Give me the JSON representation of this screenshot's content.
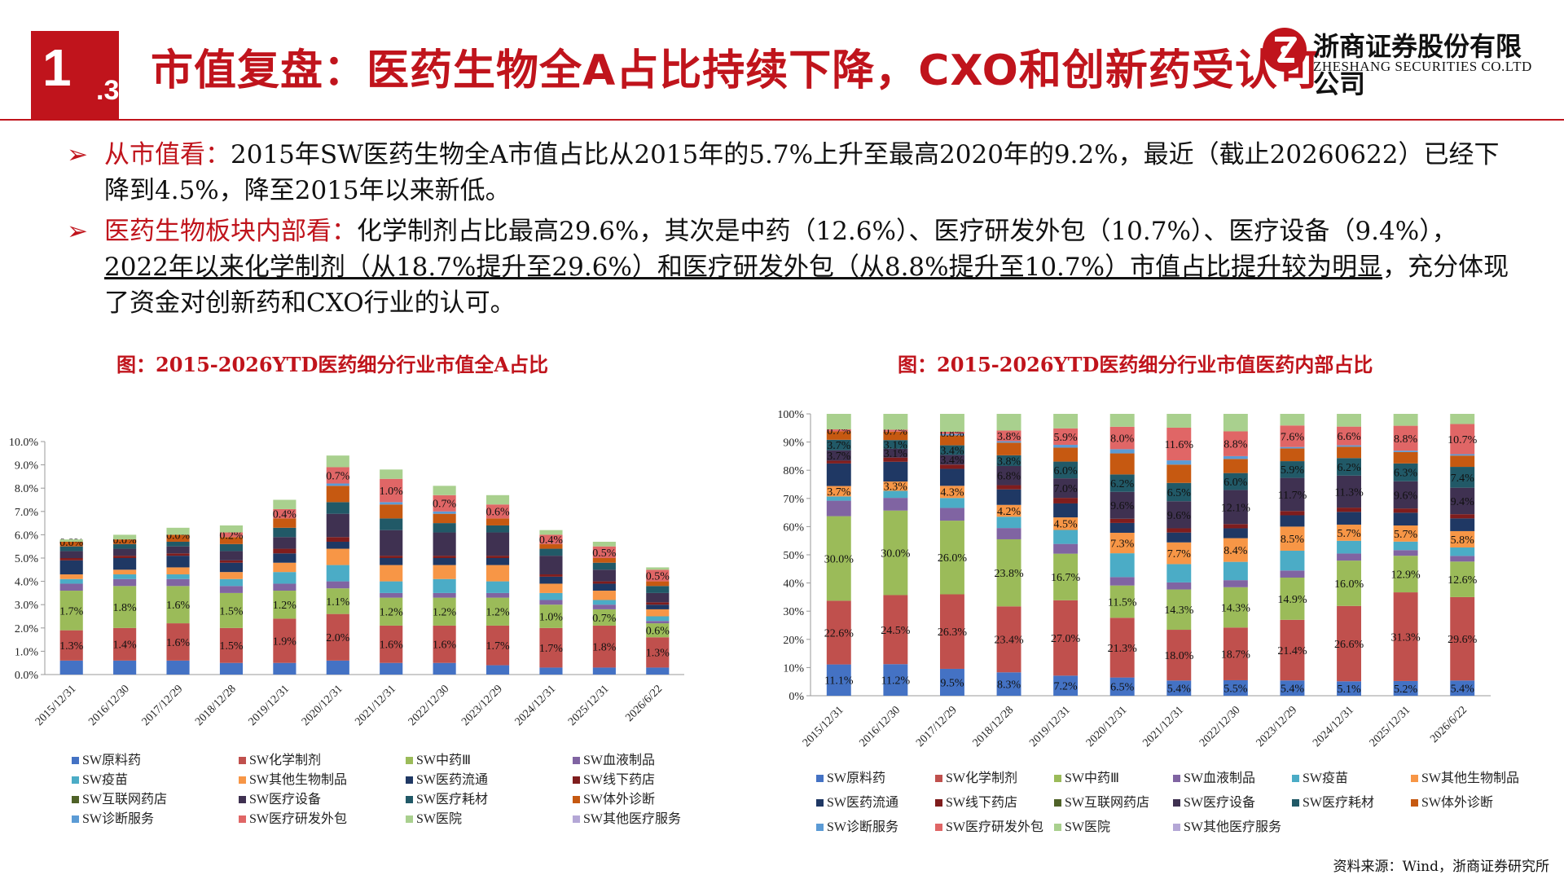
{
  "header": {
    "badge_number": "1",
    "badge_sub": ".3",
    "title": "市值复盘：医药生物全A占比持续下降，CXO和创新药受认可",
    "logo_cn": "浙商证券股份有限公司",
    "logo_en": "ZHESHANG SECURITIES CO.LTD"
  },
  "bullets": [
    {
      "lead": "从市值看：",
      "text": "2015年SW医药生物全A市值占比从2015年的5.7%上升至最高2020年的9.2%，最近（截止20260622）已经下降到4.5%，降至2015年以来新低。"
    },
    {
      "lead": "医药生物板块内部看：",
      "text_before": "化学制剂占比最高29.6%，其次是中药（12.6%）、医疗研发外包（10.7%）、医疗设备（9.4%），",
      "text_underlined": "2022年以来化学制剂（从18.7%提升至29.6%）和医疗研发外包（从8.8%提升至10.7%）市值占比提升较为明显",
      "text_after": "，充分体现了资金对创新药和CXO行业的认可。"
    }
  ],
  "source": "资料来源：Wind，浙商证券研究所",
  "chart_data": [
    {
      "type": "bar",
      "stacked": true,
      "title": "图：2015-2026YTD医药细分行业市值全A占比",
      "categories": [
        "2015/12/31",
        "2016/12/30",
        "2017/12/29",
        "2018/12/28",
        "2019/12/31",
        "2020/12/31",
        "2021/12/31",
        "2022/12/30",
        "2023/12/29",
        "2024/12/31",
        "2025/12/31",
        "2026/6/22"
      ],
      "ylim": [
        0,
        10
      ],
      "ytick_labels": [
        "0.0%",
        "1.0%",
        "2.0%",
        "3.0%",
        "4.0%",
        "5.0%",
        "6.0%",
        "7.0%",
        "8.0%",
        "9.0%",
        "10.0%"
      ],
      "grid": false,
      "legend_position": "bottom",
      "series": [
        {
          "name": "SW原料药",
          "color": "#4472c4",
          "values": [
            0.6,
            0.6,
            0.6,
            0.5,
            0.5,
            0.6,
            0.5,
            0.5,
            0.4,
            0.3,
            0.3,
            0.3
          ]
        },
        {
          "name": "SW化学制剂",
          "color": "#c0504d",
          "values": [
            1.3,
            1.4,
            1.6,
            1.5,
            1.9,
            2.0,
            1.6,
            1.6,
            1.7,
            1.7,
            1.8,
            1.3
          ]
        },
        {
          "name": "SW中药Ⅲ",
          "color": "#9bbb59",
          "values": [
            1.7,
            1.8,
            1.6,
            1.5,
            1.2,
            1.1,
            1.2,
            1.2,
            1.2,
            1.0,
            0.7,
            0.6
          ]
        },
        {
          "name": "SW血液制品",
          "color": "#8064a2",
          "values": [
            0.3,
            0.3,
            0.3,
            0.3,
            0.3,
            0.3,
            0.2,
            0.2,
            0.2,
            0.2,
            0.2,
            0.1
          ]
        },
        {
          "name": "SW疫苗",
          "color": "#4bacc6",
          "values": [
            0.2,
            0.2,
            0.2,
            0.3,
            0.5,
            0.7,
            0.5,
            0.6,
            0.5,
            0.3,
            0.2,
            0.2
          ]
        },
        {
          "name": "SW其他生物制品",
          "color": "#f79646",
          "values": [
            0.2,
            0.2,
            0.3,
            0.3,
            0.4,
            0.7,
            0.7,
            0.6,
            0.7,
            0.4,
            0.4,
            0.3
          ]
        },
        {
          "name": "SW医药流通",
          "color": "#1f3864",
          "values": [
            0.6,
            0.5,
            0.5,
            0.4,
            0.4,
            0.3,
            0.3,
            0.3,
            0.3,
            0.3,
            0.3,
            0.2
          ]
        },
        {
          "name": "SW线下药店",
          "color": "#7f1d1d",
          "values": [
            0.1,
            0.1,
            0.1,
            0.1,
            0.2,
            0.2,
            0.1,
            0.1,
            0.1,
            0.1,
            0.1,
            0.1
          ]
        },
        {
          "name": "SW互联网药店",
          "color": "#4f6228",
          "values": [
            0.0,
            0.0,
            0.0,
            0.0,
            0.0,
            0.0,
            0.0,
            0.0,
            0.0,
            0.0,
            0.0,
            0.0
          ]
        },
        {
          "name": "SW医疗设备",
          "color": "#3f3151",
          "values": [
            0.3,
            0.3,
            0.3,
            0.4,
            0.5,
            1.0,
            1.1,
            1.0,
            1.0,
            0.8,
            0.5,
            0.4
          ]
        },
        {
          "name": "SW医疗耗材",
          "color": "#215967",
          "values": [
            0.2,
            0.2,
            0.2,
            0.3,
            0.4,
            0.5,
            0.5,
            0.4,
            0.3,
            0.3,
            0.3,
            0.3
          ]
        },
        {
          "name": "SW体外诊断",
          "color": "#c65911",
          "values": [
            0.2,
            0.2,
            0.3,
            0.3,
            0.4,
            0.7,
            0.6,
            0.4,
            0.3,
            0.2,
            0.2,
            0.2
          ]
        },
        {
          "name": "SW诊断服务",
          "color": "#5b9bd5",
          "values": [
            0.0,
            0.0,
            0.0,
            0.0,
            0.0,
            0.1,
            0.1,
            0.1,
            0.0,
            0.0,
            0.0,
            0.0
          ]
        },
        {
          "name": "SW医疗研发外包",
          "color": "#e06666",
          "values": [
            0.0,
            0.0,
            0.0,
            0.2,
            0.4,
            0.7,
            1.0,
            0.7,
            0.6,
            0.4,
            0.5,
            0.5
          ]
        },
        {
          "name": "SW医院",
          "color": "#a9d08e",
          "values": [
            0.1,
            0.2,
            0.3,
            0.3,
            0.4,
            0.5,
            0.4,
            0.4,
            0.4,
            0.2,
            0.2,
            0.1
          ]
        },
        {
          "name": "SW其他医疗服务",
          "color": "#b4a7d6",
          "values": [
            0.0,
            0.0,
            0.0,
            0.0,
            0.0,
            0.0,
            0.0,
            0.0,
            0.0,
            0.0,
            0.0,
            0.0
          ]
        }
      ],
      "data_labels": [
        {
          "series": "SW化学制剂",
          "labels": [
            "1.3%",
            "1.4%",
            "1.6%",
            "1.5%",
            "1.9%",
            "2.0%",
            "1.6%",
            "1.6%",
            "1.7%",
            "1.7%",
            "1.8%",
            "1.3%"
          ]
        },
        {
          "series": "SW中药Ⅲ",
          "labels": [
            "1.7%",
            "1.8%",
            "1.6%",
            "1.5%",
            "1.2%",
            "1.1%",
            "1.2%",
            "1.2%",
            "1.2%",
            "1.0%",
            "0.7%",
            "0.6%"
          ]
        },
        {
          "series": "SW医疗研发外包",
          "labels": [
            "0.0%",
            "0.0%",
            "0.0%",
            "0.2%",
            "0.4%",
            "0.7%",
            "1.0%",
            "0.7%",
            "0.6%",
            "0.4%",
            "0.5%",
            "0.5%"
          ]
        }
      ]
    },
    {
      "type": "bar",
      "stacked": true,
      "percent": true,
      "title": "图：2015-2026YTD医药细分行业市值医药内部占比",
      "categories": [
        "2015/12/31",
        "2016/12/30",
        "2017/12/29",
        "2018/12/28",
        "2019/12/31",
        "2020/12/31",
        "2021/12/31",
        "2022/12/30",
        "2023/12/29",
        "2024/12/31",
        "2025/12/31",
        "2026/6/22"
      ],
      "ylim": [
        0,
        100
      ],
      "ytick_labels": [
        "0%",
        "10%",
        "20%",
        "30%",
        "40%",
        "50%",
        "60%",
        "70%",
        "80%",
        "90%",
        "100%"
      ],
      "grid": false,
      "legend_position": "bottom",
      "series": [
        {
          "name": "SW原料药",
          "color": "#4472c4",
          "values": [
            11.1,
            11.2,
            9.5,
            8.3,
            7.2,
            6.5,
            5.4,
            5.5,
            5.4,
            5.1,
            5.2,
            5.4
          ]
        },
        {
          "name": "SW化学制剂",
          "color": "#c0504d",
          "values": [
            22.6,
            24.5,
            26.3,
            23.4,
            27.0,
            21.3,
            18.0,
            18.7,
            21.4,
            26.6,
            31.3,
            29.6
          ]
        },
        {
          "name": "SW中药Ⅲ",
          "color": "#9bbb59",
          "values": [
            30.0,
            30.0,
            26.0,
            23.8,
            16.7,
            11.5,
            14.3,
            14.3,
            14.9,
            16.0,
            12.9,
            12.6
          ]
        },
        {
          "name": "SW血液制品",
          "color": "#8064a2",
          "values": [
            5.5,
            4.5,
            4.5,
            4.0,
            3.5,
            3.0,
            2.5,
            2.5,
            2.5,
            2.5,
            2.0,
            2.0
          ]
        },
        {
          "name": "SW疫苗",
          "color": "#4bacc6",
          "values": [
            1.5,
            2.5,
            3.5,
            4.0,
            5.0,
            8.5,
            6.5,
            6.5,
            7.0,
            4.5,
            3.0,
            3.0
          ]
        },
        {
          "name": "SW其他生物制品",
          "color": "#f79646",
          "values": [
            3.7,
            3.3,
            4.3,
            4.2,
            4.5,
            7.3,
            7.7,
            8.4,
            8.5,
            5.7,
            5.7,
            5.8
          ]
        },
        {
          "name": "SW医药流通",
          "color": "#1f3864",
          "values": [
            8.0,
            7.0,
            6.0,
            5.5,
            5.0,
            3.5,
            3.5,
            3.5,
            4.0,
            4.5,
            4.5,
            4.5
          ]
        },
        {
          "name": "SW线下药店",
          "color": "#7f1d1d",
          "values": [
            1.0,
            1.5,
            1.5,
            1.5,
            2.0,
            1.5,
            1.5,
            1.5,
            1.5,
            1.5,
            1.5,
            1.5
          ]
        },
        {
          "name": "SW互联网药店",
          "color": "#4f6228",
          "values": [
            0.0,
            0.0,
            0.0,
            0.0,
            0.0,
            0.0,
            0.0,
            0.0,
            0.0,
            0.0,
            0.0,
            0.0
          ]
        },
        {
          "name": "SW医疗设备",
          "color": "#3f3151",
          "values": [
            3.7,
            3.1,
            3.4,
            6.8,
            7.0,
            9.6,
            9.6,
            12.1,
            11.7,
            11.3,
            9.6,
            9.4
          ]
        },
        {
          "name": "SW医疗耗材",
          "color": "#215967",
          "values": [
            3.7,
            3.1,
            3.4,
            3.8,
            6.0,
            6.2,
            6.5,
            6.0,
            5.9,
            6.2,
            6.3,
            7.4
          ]
        },
        {
          "name": "SW体外诊断",
          "color": "#c65911",
          "values": [
            3.0,
            3.0,
            3.5,
            4.5,
            5.0,
            7.5,
            6.5,
            5.0,
            4.5,
            4.0,
            4.0,
            4.0
          ]
        },
        {
          "name": "SW诊断服务",
          "color": "#5b9bd5",
          "values": [
            0.0,
            0.0,
            0.5,
            0.5,
            1.0,
            1.5,
            1.5,
            1.0,
            0.5,
            0.5,
            0.5,
            0.5
          ]
        },
        {
          "name": "SW医疗研发外包",
          "color": "#e06666",
          "values": [
            0.7,
            0.7,
            0.8,
            3.8,
            5.9,
            8.0,
            11.6,
            8.8,
            7.6,
            6.6,
            8.8,
            10.7
          ]
        },
        {
          "name": "SW医院",
          "color": "#a9d08e",
          "values": [
            5.5,
            5.6,
            6.3,
            5.9,
            5.2,
            4.6,
            4.9,
            6.2,
            4.1,
            4.5,
            4.2,
            3.6
          ]
        },
        {
          "name": "SW其他医疗服务",
          "color": "#b4a7d6",
          "values": [
            0.0,
            0.0,
            0.0,
            0.0,
            0.0,
            0.0,
            0.0,
            0.0,
            0.0,
            0.0,
            0.0,
            0.0
          ]
        }
      ],
      "data_labels": [
        {
          "series": "SW原料药",
          "labels": [
            "11.1%",
            "11.2%",
            "9.5%",
            "8.3%",
            "7.2%",
            "6.5%",
            "5.4%",
            "5.5%",
            "5.4%",
            "5.1%",
            "5.2%",
            "5.4%"
          ]
        },
        {
          "series": "SW化学制剂",
          "labels": [
            "22.6%",
            "24.5%",
            "26.3%",
            "23.4%",
            "27.0%",
            "21.3%",
            "18.0%",
            "18.7%",
            "21.4%",
            "26.6%",
            "31.3%",
            "29.6%"
          ]
        },
        {
          "series": "SW中药Ⅲ",
          "labels": [
            "30.0%",
            "30.0%",
            "26.0%",
            "23.8%",
            "16.7%",
            "11.5%",
            "14.3%",
            "14.3%",
            "14.9%",
            "16.0%",
            "12.9%",
            "12.6%"
          ]
        },
        {
          "series": "SW其他生物制品",
          "labels": [
            "3.7%",
            "3.3%",
            "4.3%",
            "4.2%",
            "4.5%",
            "7.3%",
            "7.7%",
            "8.4%",
            "8.5%",
            "5.7%",
            "5.7%",
            "5.8%"
          ]
        },
        {
          "series": "SW医疗设备",
          "labels": [
            "3.7%",
            "3.1%",
            "3.4%",
            "6.8%",
            "7.0%",
            "9.6%",
            "9.6%",
            "12.1%",
            "11.7%",
            "11.3%",
            "9.6%",
            "9.4%"
          ]
        },
        {
          "series": "SW医疗耗材",
          "labels": [
            "3.7%",
            "3.1%",
            "3.4%",
            "3.8%",
            "6.0%",
            "6.2%",
            "6.5%",
            "6.0%",
            "5.9%",
            "6.2%",
            "6.3%",
            "7.4%"
          ]
        },
        {
          "series": "SW医疗研发外包",
          "labels": [
            "0.7%",
            "0.7%",
            "0.8%",
            "3.8%",
            "5.9%",
            "8.0%",
            "11.6%",
            "8.8%",
            "7.6%",
            "6.6%",
            "8.8%",
            "10.7%"
          ]
        }
      ]
    }
  ]
}
